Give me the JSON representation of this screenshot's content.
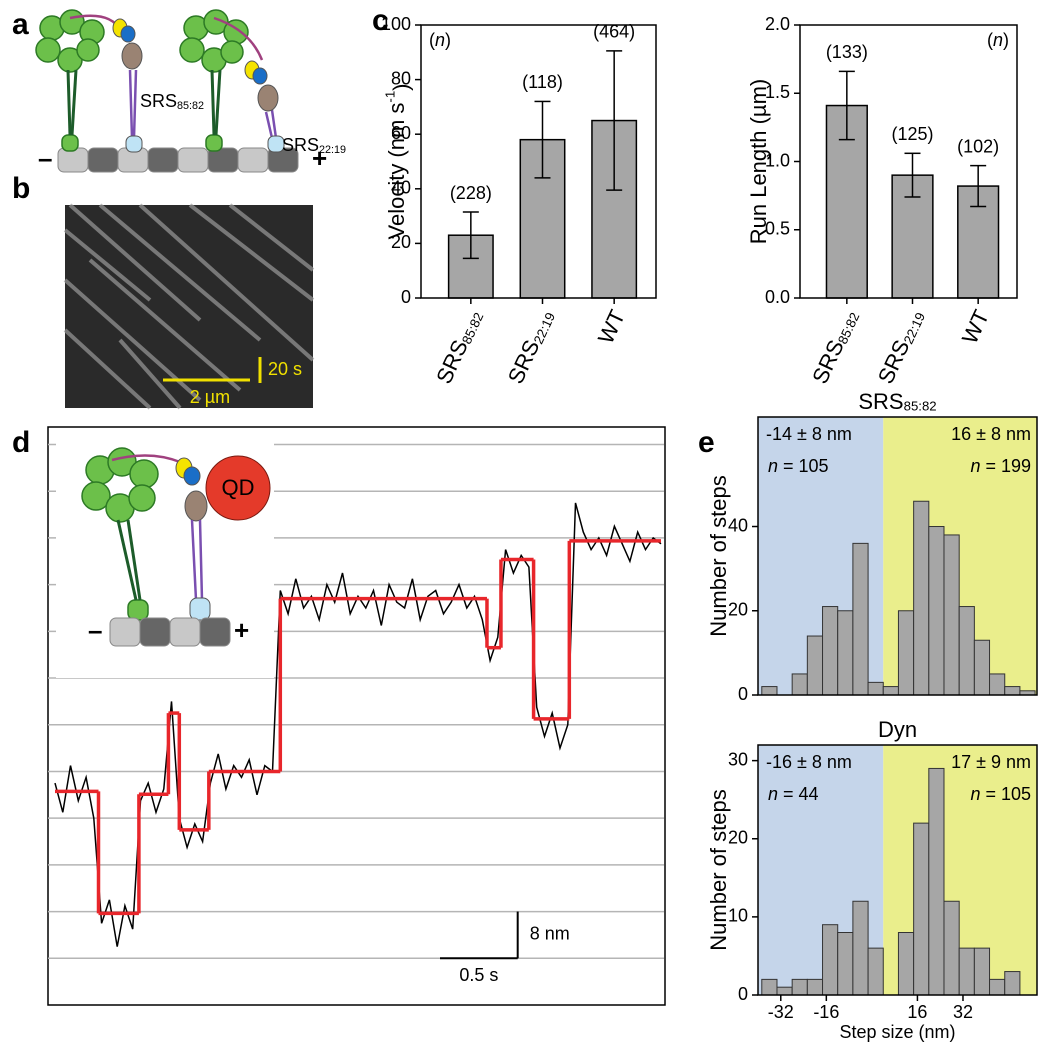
{
  "panels": [
    "a",
    "b",
    "c",
    "d",
    "e"
  ],
  "diagram_a": {
    "labels": [
      "SRS85:82",
      "SRS22:19"
    ],
    "minus": "–",
    "plus": "+"
  },
  "kymograph_b": {
    "x_scale": "2 µm",
    "t_scale": "20 s"
  },
  "inset_d": {
    "bead": "QD",
    "minus": "–",
    "plus": "+"
  },
  "chart_data": [
    {
      "type": "bar",
      "ylabel": "Velocity (nm s-1)",
      "annotation": "(n)",
      "categories": [
        "SRS85:82",
        "SRS22:19",
        "WT"
      ],
      "values": [
        23,
        58,
        65
      ],
      "errors": [
        8.5,
        14,
        25.5
      ],
      "n_labels": [
        "(228)",
        "(118)",
        "(464)"
      ],
      "color": "#a6a6a6",
      "ylim": [
        0,
        100
      ],
      "yticks": [
        0,
        20,
        40,
        60,
        80,
        100
      ]
    },
    {
      "type": "bar",
      "ylabel": "Run Length (µm)",
      "annotation": "(n)",
      "categories": [
        "SRS85:82",
        "SRS22:19",
        "WT"
      ],
      "values": [
        1.41,
        0.9,
        0.82
      ],
      "errors": [
        0.25,
        0.16,
        0.15
      ],
      "n_labels": [
        "(133)",
        "(125)",
        "(102)"
      ],
      "color": "#a6a6a6",
      "ylim": [
        0,
        2
      ],
      "yticks": [
        {
          "value": 0,
          "label": "0.0"
        },
        0.5,
        {
          "value": 1,
          "label": "1.0"
        },
        1.5,
        {
          "value": 2,
          "label": "2.0"
        }
      ]
    },
    {
      "type": "trace",
      "color": "#000000",
      "x": [
        0,
        0.05,
        0.1,
        0.15,
        0.2,
        0.25,
        0.3,
        0.35,
        0.4,
        0.45,
        0.5,
        0.55,
        0.6,
        0.65,
        0.7,
        0.75,
        0.8,
        0.85,
        0.9,
        0.95,
        1,
        1.05,
        1.1,
        1.15,
        1.2,
        1.25,
        1.3,
        1.35,
        1.4,
        1.45,
        1.5,
        1.55,
        1.6,
        1.65,
        1.7,
        1.75,
        1.8,
        1.85,
        1.9,
        1.95,
        2,
        2.05,
        2.1,
        2.15,
        2.2,
        2.25,
        2.3,
        2.35,
        2.4,
        2.45,
        2.5,
        2.55,
        2.6,
        2.65,
        2.7,
        2.75,
        2.8,
        2.85,
        2.9,
        2.95,
        3,
        3.05,
        3.1,
        3.15,
        3.2,
        3.25,
        3.3,
        3.35,
        3.4,
        3.45,
        3.5,
        3.55,
        3.6,
        3.65,
        3.7,
        3.75,
        3.8,
        3.85,
        3.9
      ],
      "values": [
        30,
        25,
        33,
        27,
        31,
        24,
        6,
        10,
        2,
        9,
        5,
        27,
        30,
        25,
        29,
        44,
        24,
        19,
        23,
        20,
        30,
        35,
        29,
        33,
        31,
        34,
        28,
        33,
        32,
        63,
        59,
        65,
        60,
        62,
        58,
        64,
        61,
        66,
        59,
        62,
        60,
        63,
        57,
        64,
        61,
        60,
        65,
        58,
        62,
        63,
        59,
        61,
        64,
        60,
        62,
        58,
        51,
        55,
        70,
        66,
        69,
        67,
        43,
        38,
        42,
        36,
        40,
        78,
        73,
        70,
        72,
        69,
        74,
        71,
        68,
        73,
        70,
        72,
        71
      ],
      "fit": {
        "color": "#e8262b",
        "x": [
          0,
          0.28,
          0.54,
          0.73,
          0.8,
          0.99,
          1.45,
          2.78,
          2.87,
          3.08,
          3.31
        ],
        "values": [
          28.6,
          7.7,
          28.1,
          42,
          22,
          32,
          61.6,
          53.2,
          68.3,
          41,
          71.5
        ]
      },
      "xlim": [
        0,
        3.9
      ],
      "ylim": [
        -8,
        91
      ],
      "grid_lines": [
        0,
        8,
        16,
        24,
        32,
        40,
        48,
        56,
        64,
        72,
        80,
        88
      ],
      "scale_x": {
        "value": 0.5,
        "label": "0.5 s"
      },
      "scale_y": {
        "value": 8,
        "label": "8 nm"
      }
    },
    {
      "type": "histogram",
      "title": "SRS85:82",
      "ylabel": "Number of steps",
      "color": "#a6a6a6",
      "bins": [
        -38.67,
        -33.33,
        -28,
        -22.67,
        -17.33,
        -12,
        -6.67,
        -1.33,
        4,
        9.33,
        14.67,
        20,
        25.33,
        30.67,
        36,
        41.33,
        46.67,
        52,
        57.33
      ],
      "values": [
        2,
        0,
        5,
        14,
        21,
        20,
        36,
        3,
        2,
        20,
        46,
        40,
        38,
        21,
        13,
        5,
        2,
        1
      ],
      "xlim": [
        -40,
        58
      ],
      "ylim": [
        0,
        66
      ],
      "yticks": [
        0,
        20,
        40
      ],
      "regions": [
        {
          "color": "#c5d5ea",
          "stats": "-14 ± 8 nm",
          "n": "n = 105"
        },
        {
          "color": "#eaee8c",
          "stats": "16 ± 8 nm",
          "n": "n = 199"
        }
      ]
    },
    {
      "type": "histogram",
      "title": "Dyn",
      "ylabel": "Number of steps",
      "xlabel": "Step size (nm)",
      "color": "#a6a6a6",
      "bins": [
        -38.67,
        -33.33,
        -28,
        -22.67,
        -17.33,
        -12,
        -6.67,
        -1.33,
        4,
        9.33,
        14.67,
        20,
        25.33,
        30.67,
        36,
        41.33,
        46.67,
        52,
        57.33
      ],
      "values": [
        2,
        1,
        2,
        2,
        9,
        8,
        12,
        6,
        0,
        8,
        22,
        29,
        12,
        6,
        6,
        2,
        3,
        0
      ],
      "xlim": [
        -40,
        58
      ],
      "ylim": [
        0,
        32
      ],
      "yticks": [
        0,
        10,
        20,
        30
      ],
      "xticks": [
        -32,
        -16,
        16,
        32
      ],
      "regions": [
        {
          "color": "#c5d5ea",
          "stats": "-16 ± 8 nm",
          "n": "n = 44"
        },
        {
          "color": "#eaee8c",
          "stats": "17 ± 9 nm",
          "n": "n = 105"
        }
      ]
    }
  ]
}
